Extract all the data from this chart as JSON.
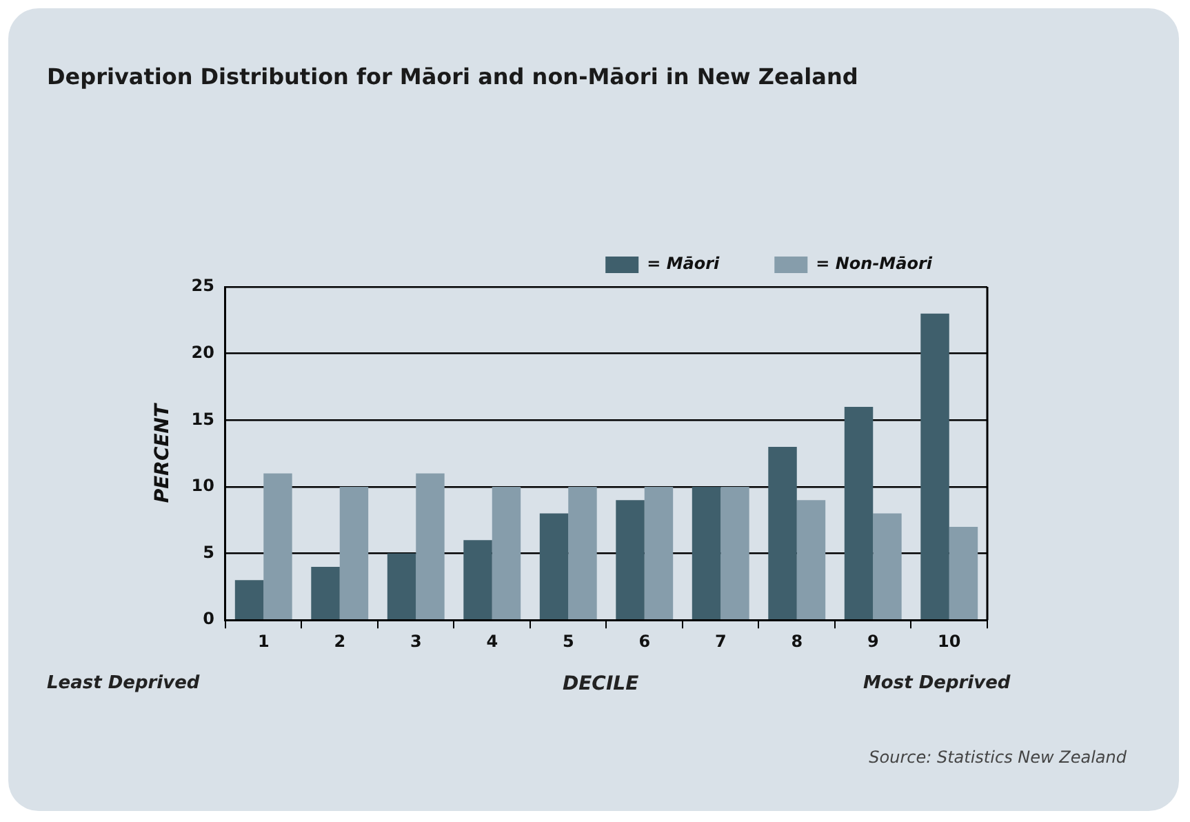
{
  "chart_data": {
    "type": "bar",
    "title": "Deprivation Distribution for Māori and non-Māori in New Zealand",
    "xlabel": "DECILE",
    "ylabel": "PERCENT",
    "categories": [
      "1",
      "2",
      "3",
      "4",
      "5",
      "6",
      "7",
      "8",
      "9",
      "10"
    ],
    "series": [
      {
        "name": "= Māori",
        "color": "#3f5f6c",
        "values": [
          3,
          4,
          5,
          6,
          8,
          9,
          10,
          13,
          16,
          23
        ]
      },
      {
        "name": "= Non-Māori",
        "color": "#869dab",
        "values": [
          11,
          10,
          11,
          10,
          10,
          10,
          10,
          9,
          8,
          7
        ]
      }
    ],
    "ylim": [
      0,
      25
    ],
    "yticks": [
      0,
      5,
      10,
      15,
      20,
      25
    ],
    "grid": "y",
    "legend": "top right",
    "annotations": [
      "Least Deprived",
      "Most Deprived",
      "Source: Statistics New Zealand"
    ]
  }
}
